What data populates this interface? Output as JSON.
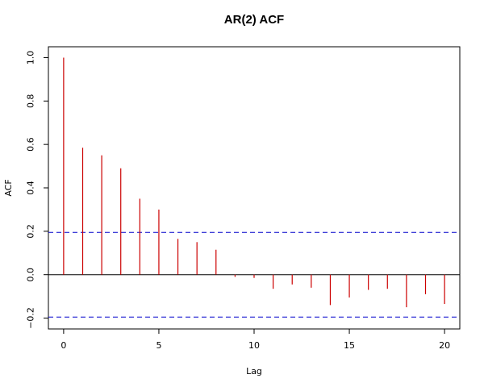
{
  "chart_data": {
    "type": "bar",
    "title": "AR(2) ACF",
    "xlabel": "Lag",
    "ylabel": "ACF",
    "x": [
      0,
      1,
      2,
      3,
      4,
      5,
      6,
      7,
      8,
      9,
      10,
      11,
      12,
      13,
      14,
      15,
      16,
      17,
      18,
      19,
      20
    ],
    "values": [
      1.0,
      0.585,
      0.55,
      0.49,
      0.35,
      0.3,
      0.165,
      0.15,
      0.115,
      -0.01,
      -0.015,
      -0.065,
      -0.045,
      -0.06,
      -0.14,
      -0.105,
      -0.07,
      -0.065,
      -0.15,
      -0.09,
      -0.135
    ],
    "xlim": [
      -0.8,
      20.8
    ],
    "ylim": [
      -0.25,
      1.05
    ],
    "xticks": [
      0,
      5,
      10,
      15,
      20
    ],
    "yticks": [
      -0.2,
      0.0,
      0.2,
      0.4,
      0.6,
      0.8,
      1.0
    ],
    "xtick_labels": [
      "0",
      "5",
      "10",
      "15",
      "20"
    ],
    "ytick_labels": [
      "−0.2",
      "0.0",
      "0.2",
      "0.4",
      "0.6",
      "0.8",
      "1.0"
    ],
    "confidence_bound": 0.195,
    "colors": {
      "bars": "#cc0000",
      "confidence_lines": "#0000cc",
      "zero_line": "#000000",
      "axes": "#000000"
    },
    "grid": false
  }
}
